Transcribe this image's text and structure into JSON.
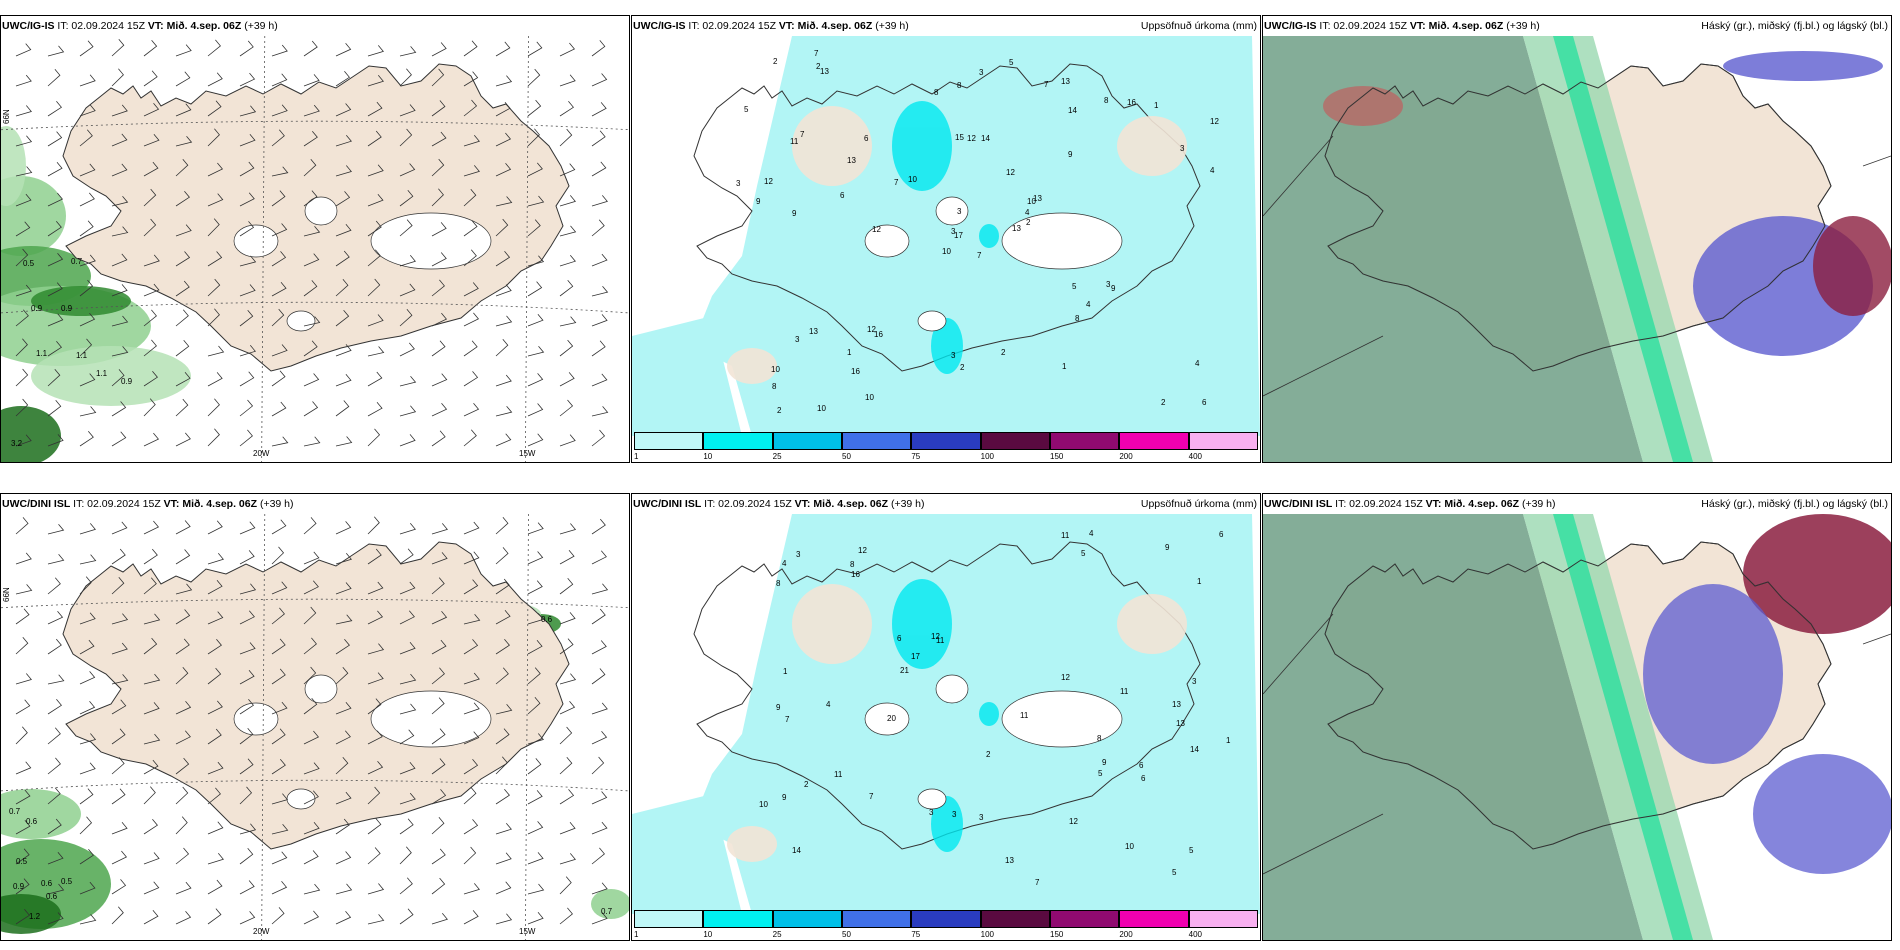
{
  "panels": [
    {
      "model": "UWC/IG-IS",
      "it": "IT: 02.09.2024 15Z",
      "vt": "VT: Mið. 4.sep. 06Z",
      "lead": "(+39 h)",
      "right_title": "",
      "precip_labels": [
        "0.5",
        "0.7",
        "0.9",
        "0.9",
        "1.1",
        "1.1",
        "1.1",
        "0.9",
        "3.2"
      ],
      "axis_labels": {
        "lat": "66N",
        "lon1": "20W",
        "lon2": "15W"
      }
    },
    {
      "model": "UWC/IG-IS",
      "it": "IT: 02.09.2024 15Z",
      "vt": "VT: Mið. 4.sep. 06Z",
      "lead": "(+39 h)",
      "right_title": "Uppsöfnuð úrkoma (mm)",
      "rain_numbers": [
        "7",
        "11",
        "17",
        "10",
        "10",
        "16",
        "13",
        "14",
        "14",
        "13",
        "13",
        "6",
        "9",
        "12",
        "10",
        "9",
        "10",
        "15",
        "12",
        "13",
        "10",
        "8",
        "16",
        "12",
        "13",
        "9",
        "7",
        "8",
        "9",
        "5",
        "4",
        "3",
        "3",
        "3",
        "6",
        "8",
        "12",
        "2",
        "4",
        "3",
        "5",
        "7",
        "6",
        "8",
        "10",
        "3",
        "4",
        "2",
        "2",
        "2",
        "3",
        "3",
        "5",
        "4",
        "1",
        "1",
        "2",
        "2",
        "2",
        "1",
        "3",
        "12",
        "12",
        "13",
        "16",
        "7",
        "7",
        "8"
      ],
      "colorbar": {
        "levels": [
          "1",
          "10",
          "25",
          "50",
          "75",
          "100",
          "150",
          "200",
          "400"
        ]
      }
    },
    {
      "model": "UWC/IG-IS",
      "it": "IT: 02.09.2024 15Z",
      "vt": "VT: Mið. 4.sep. 06Z",
      "lead": "(+39 h)",
      "right_title": "Háský (gr.), miðský (fj.bl.) og lágský (bl.)"
    },
    {
      "model": "UWC/DINI ISL",
      "it": "IT: 02.09.2024 15Z",
      "vt": "VT: Mið. 4.sep. 06Z",
      "lead": "(+39 h)",
      "right_title": "",
      "precip_labels": [
        "0.7",
        "0.6",
        "0.5",
        "0.9",
        "0.6",
        "0.5",
        "0.6",
        "1.2",
        "0.7",
        "0.6"
      ],
      "axis_labels": {
        "lat": "66N",
        "lon1": "20W",
        "lon2": "15W"
      }
    },
    {
      "model": "UWC/DINI ISL",
      "it": "IT: 02.09.2024 15Z",
      "vt": "VT: Mið. 4.sep. 06Z",
      "lead": "(+39 h)",
      "right_title": "Uppsöfnuð úrkoma (mm)",
      "rain_numbers": [
        "8",
        "13",
        "14",
        "12",
        "11",
        "10",
        "9",
        "5",
        "6",
        "7",
        "8",
        "9",
        "4",
        "5",
        "3",
        "3",
        "2",
        "11",
        "12",
        "11",
        "6",
        "9",
        "21",
        "14",
        "11",
        "8",
        "9",
        "7",
        "16",
        "11",
        "13",
        "12",
        "17",
        "20",
        "13",
        "6",
        "5",
        "4",
        "3",
        "2",
        "1",
        "4",
        "5",
        "3",
        "6",
        "7",
        "10",
        "3",
        "12",
        "1",
        "1"
      ],
      "colorbar": {
        "levels": [
          "1",
          "10",
          "25",
          "50",
          "75",
          "100",
          "150",
          "200",
          "400"
        ]
      }
    },
    {
      "model": "UWC/DINI ISL",
      "it": "IT: 02.09.2024 15Z",
      "vt": "VT: Mið. 4.sep. 06Z",
      "lead": "(+39 h)",
      "right_title": "Háský (gr.), miðský (fj.bl.) og lágský (bl.)"
    }
  ],
  "colors": {
    "land": "#f2e4d6",
    "ocean": "#ffffff",
    "precip_green": "#6dbb6d",
    "rain_cyan": "#b2f5f5",
    "cloud_high": "#6f9f86",
    "cloud_mid": "#5c5cd0",
    "cloud_low": "#8b1e3f"
  },
  "colorbar_colors": [
    "#c0f8f8",
    "#00f0f0",
    "#00c0e8",
    "#4070e8",
    "#2a3cc0",
    "#5a0a40",
    "#900a70",
    "#f000b0",
    "#f8b0f0"
  ]
}
